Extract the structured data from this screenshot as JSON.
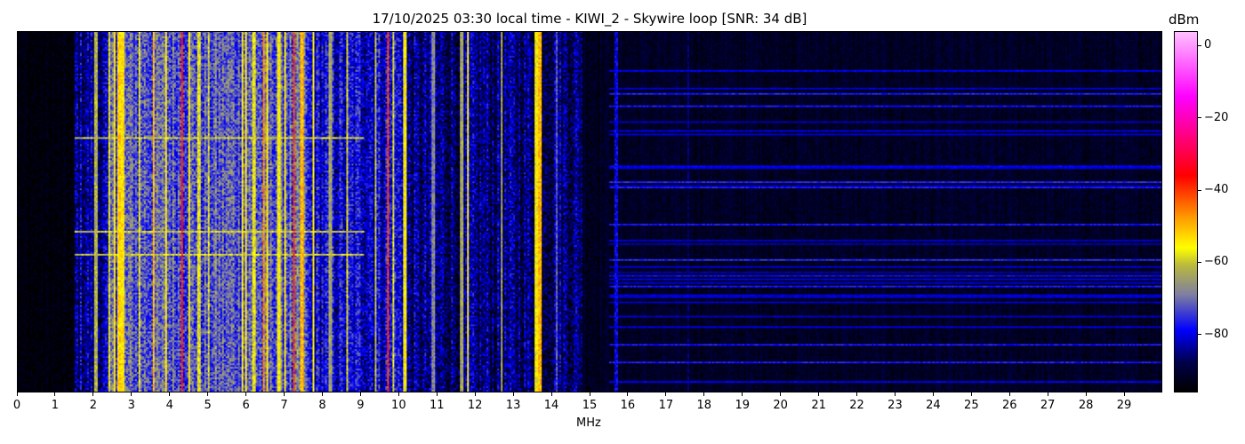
{
  "chart_data": {
    "type": "heatmap",
    "title": "17/10/2025 03:30 local time - KIWI_2 - Skywire loop [SNR: 34 dB]",
    "xlabel": "MHz",
    "ylabel": "",
    "xlim": [
      0,
      30
    ],
    "x_ticks": [
      "0",
      "1",
      "2",
      "3",
      "4",
      "5",
      "6",
      "7",
      "8",
      "9",
      "10",
      "11",
      "12",
      "13",
      "14",
      "15",
      "16",
      "17",
      "18",
      "19",
      "20",
      "21",
      "22",
      "23",
      "24",
      "25",
      "26",
      "27",
      "28",
      "29"
    ],
    "colorbar": {
      "label": "dBm",
      "range": [
        -96,
        4
      ],
      "ticks": [
        "0",
        "−20",
        "−40",
        "−60",
        "−80"
      ],
      "tick_values": [
        0,
        -20,
        -40,
        -60,
        -80
      ],
      "colormap": [
        {
          "v": -96,
          "c": "#000000"
        },
        {
          "v": -88,
          "c": "#00004a"
        },
        {
          "v": -79,
          "c": "#0000ff"
        },
        {
          "v": -69,
          "c": "#8080a0"
        },
        {
          "v": -61,
          "c": "#b8b840"
        },
        {
          "v": -56,
          "c": "#ffff00"
        },
        {
          "v": -48,
          "c": "#ffa000"
        },
        {
          "v": -36,
          "c": "#ff0000"
        },
        {
          "v": -25,
          "c": "#ff0080"
        },
        {
          "v": -14,
          "c": "#ff00ff"
        },
        {
          "v": 4,
          "c": "#ffc0ff"
        }
      ]
    },
    "noise_floor_dbm": [
      {
        "from": 0,
        "to": 1.5,
        "level": -95
      },
      {
        "from": 1.5,
        "to": 2.4,
        "level": -84
      },
      {
        "from": 2.4,
        "to": 7.6,
        "level": -72
      },
      {
        "from": 7.6,
        "to": 10.2,
        "level": -80
      },
      {
        "from": 10.2,
        "to": 14.8,
        "level": -86
      },
      {
        "from": 14.8,
        "to": 30,
        "level": -92
      }
    ],
    "signals_mhz_dbm": [
      [
        2.05,
        -62
      ],
      [
        2.4,
        -58
      ],
      [
        2.55,
        -55
      ],
      [
        2.65,
        -52
      ],
      [
        2.75,
        -54
      ],
      [
        3.2,
        -58
      ],
      [
        3.55,
        -50
      ],
      [
        3.9,
        -55
      ],
      [
        4.3,
        -38
      ],
      [
        4.5,
        -56
      ],
      [
        4.75,
        -58
      ],
      [
        5.0,
        -60
      ],
      [
        5.9,
        -56
      ],
      [
        6.0,
        -55
      ],
      [
        6.2,
        -58
      ],
      [
        6.45,
        -46
      ],
      [
        6.55,
        -54
      ],
      [
        6.85,
        -56
      ],
      [
        7.0,
        -55
      ],
      [
        7.25,
        -40
      ],
      [
        7.45,
        -50
      ],
      [
        7.75,
        -55
      ],
      [
        8.2,
        -64
      ],
      [
        8.65,
        -60
      ],
      [
        9.4,
        -62
      ],
      [
        9.7,
        -40
      ],
      [
        9.85,
        -60
      ],
      [
        10.15,
        -56
      ],
      [
        10.9,
        -68
      ],
      [
        11.65,
        -64
      ],
      [
        11.8,
        -56
      ],
      [
        12.7,
        -64
      ],
      [
        13.6,
        -56
      ],
      [
        13.7,
        -50
      ],
      [
        14.15,
        -72
      ],
      [
        15.7,
        -80
      ],
      [
        17.6,
        -86
      ]
    ]
  }
}
